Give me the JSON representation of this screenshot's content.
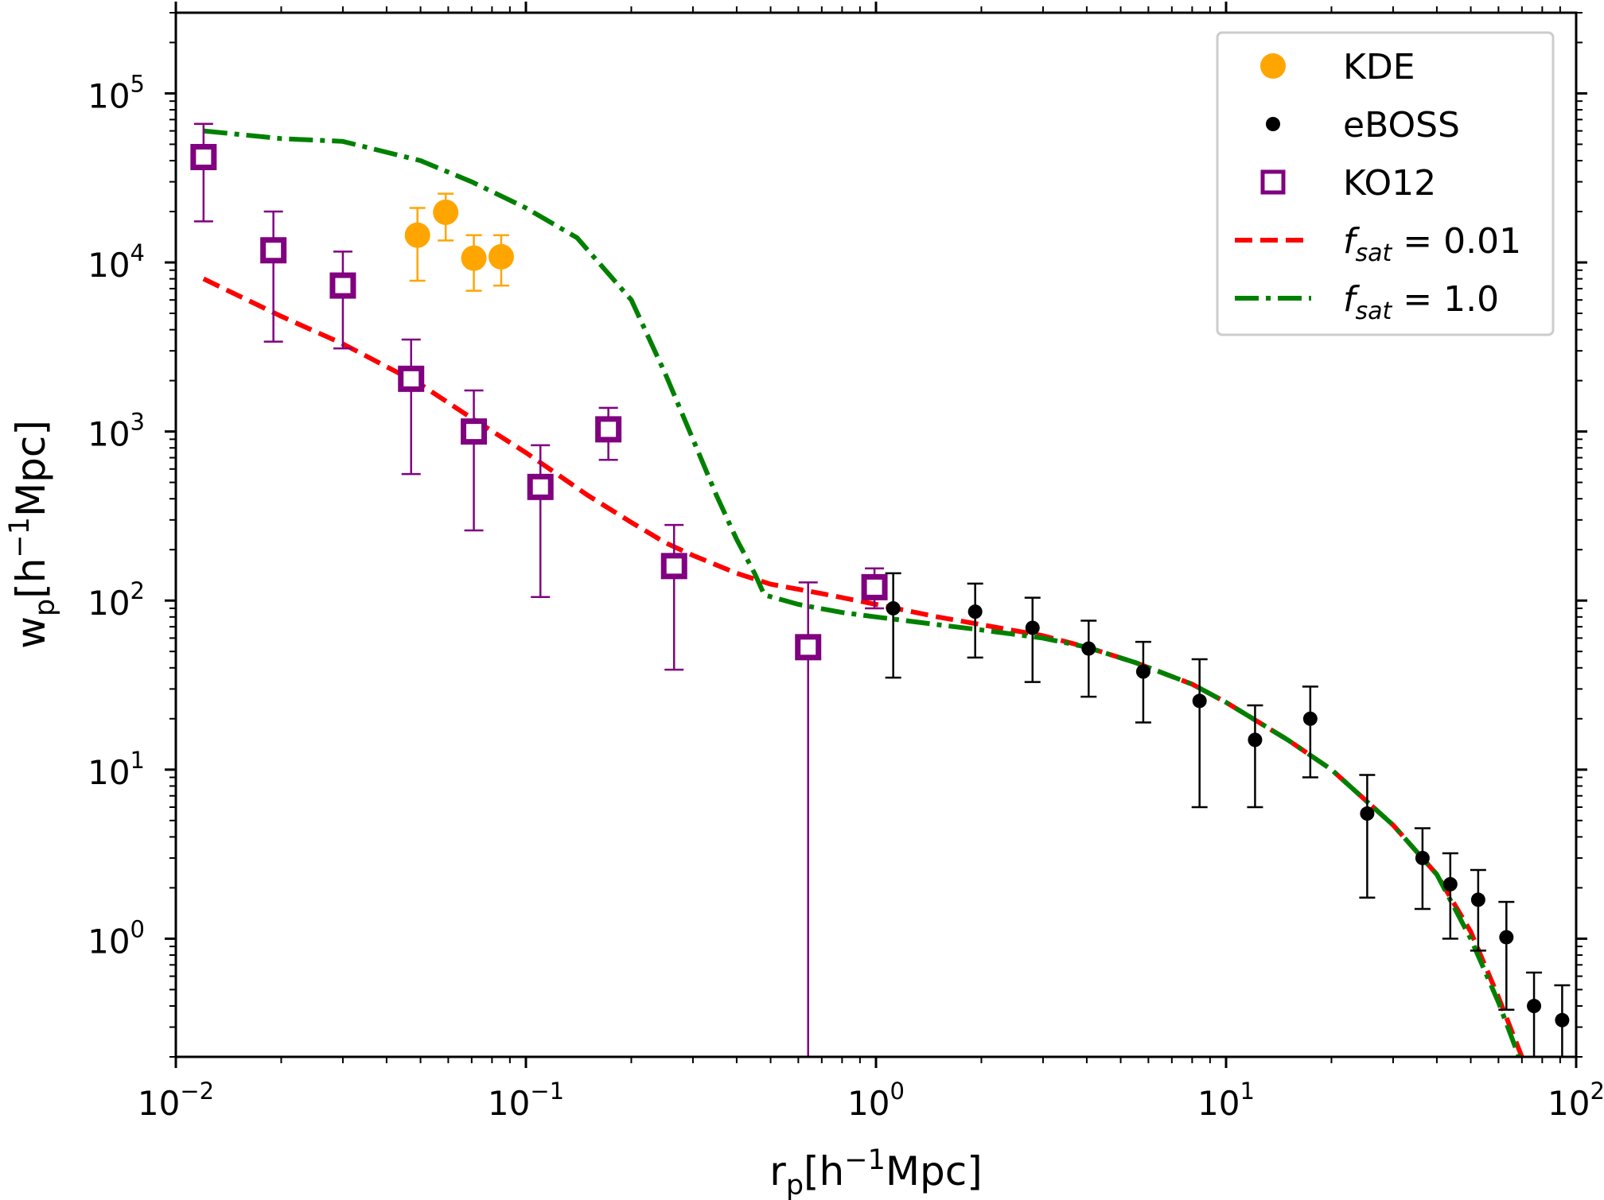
{
  "chart_data": {
    "type": "scatter",
    "xscale": "log",
    "yscale": "log",
    "xlim": [
      0.01,
      100
    ],
    "ylim": [
      0.2,
      300000
    ],
    "xlabel": {
      "main": "r",
      "sub": "p",
      "unit_a": "[h",
      "sup": "−1",
      "unit_b": "Mpc]"
    },
    "ylabel": {
      "main": "w",
      "sub": "p",
      "unit_a": "[h",
      "sup": "−1",
      "unit_b": "Mpc]"
    },
    "x_ticks": [
      {
        "value": 0.01,
        "base": "10",
        "exp": "−2"
      },
      {
        "value": 0.1,
        "base": "10",
        "exp": "−1"
      },
      {
        "value": 1,
        "base": "10",
        "exp": "0"
      },
      {
        "value": 10,
        "base": "10",
        "exp": "1"
      },
      {
        "value": 100,
        "base": "10",
        "exp": "2"
      }
    ],
    "y_ticks": [
      {
        "value": 1,
        "base": "10",
        "exp": "0"
      },
      {
        "value": 10,
        "base": "10",
        "exp": "1"
      },
      {
        "value": 100,
        "base": "10",
        "exp": "2"
      },
      {
        "value": 1000,
        "base": "10",
        "exp": "3"
      },
      {
        "value": 10000,
        "base": "10",
        "exp": "4"
      },
      {
        "value": 100000,
        "base": "10",
        "exp": "5"
      }
    ],
    "grid": false,
    "legend_position": "top-right",
    "legend": [
      {
        "label": "KDE",
        "marker": "circle-large",
        "color": "#ffa500"
      },
      {
        "label": "eBOSS",
        "marker": "circle-small",
        "color": "#000000"
      },
      {
        "label": "KO12",
        "marker": "square-open",
        "color": "#800080"
      },
      {
        "label_main": "f",
        "label_sub": "sat",
        "label_rest": " = 0.01",
        "marker": "dashed",
        "color": "#ff0000"
      },
      {
        "label_main": "f",
        "label_sub": "sat",
        "label_rest": " = 1.0",
        "marker": "dashdot",
        "color": "#008000"
      }
    ],
    "series": [
      {
        "name": "KDE",
        "kind": "points",
        "color": "#ffa500",
        "points": [
          {
            "x": 0.049,
            "y": 14500,
            "lo": 7800,
            "hi": 21000
          },
          {
            "x": 0.059,
            "y": 19800,
            "lo": 13500,
            "hi": 25500
          },
          {
            "x": 0.071,
            "y": 10600,
            "lo": 6800,
            "hi": 14500
          },
          {
            "x": 0.085,
            "y": 10800,
            "lo": 7300,
            "hi": 14500
          }
        ]
      },
      {
        "name": "eBOSS",
        "kind": "points",
        "color": "#000000",
        "points": [
          {
            "x": 1.12,
            "y": 90,
            "lo": 35,
            "hi": 145
          },
          {
            "x": 1.92,
            "y": 86,
            "lo": 46,
            "hi": 126
          },
          {
            "x": 2.8,
            "y": 69,
            "lo": 33,
            "hi": 104
          },
          {
            "x": 4.05,
            "y": 52,
            "lo": 27,
            "hi": 76
          },
          {
            "x": 5.8,
            "y": 38,
            "lo": 19,
            "hi": 57
          },
          {
            "x": 8.4,
            "y": 25.5,
            "lo": 6,
            "hi": 45
          },
          {
            "x": 12.1,
            "y": 15,
            "lo": 6,
            "hi": 24
          },
          {
            "x": 17.4,
            "y": 20,
            "lo": 9,
            "hi": 31
          },
          {
            "x": 25.3,
            "y": 5.5,
            "lo": 1.75,
            "hi": 9.3
          },
          {
            "x": 36.4,
            "y": 3.0,
            "lo": 1.5,
            "hi": 4.5
          },
          {
            "x": 43.7,
            "y": 2.1,
            "lo": 1.0,
            "hi": 3.2
          },
          {
            "x": 52.5,
            "y": 1.7,
            "lo": 0.85,
            "hi": 2.55
          },
          {
            "x": 63.2,
            "y": 1.02,
            "lo": 0.38,
            "hi": 1.65
          },
          {
            "x": 75.8,
            "y": 0.4,
            "lo": 0.15,
            "hi": 0.63
          },
          {
            "x": 91.2,
            "y": 0.33,
            "lo": 0.12,
            "hi": 0.53
          }
        ]
      },
      {
        "name": "KO12",
        "kind": "points",
        "color": "#800080",
        "points": [
          {
            "x": 0.012,
            "y": 42000,
            "lo": 17500,
            "hi": 66000
          },
          {
            "x": 0.019,
            "y": 11800,
            "lo": 3400,
            "hi": 20000
          },
          {
            "x": 0.03,
            "y": 7300,
            "lo": 3100,
            "hi": 11600
          },
          {
            "x": 0.047,
            "y": 2050,
            "lo": 560,
            "hi": 3500
          },
          {
            "x": 0.071,
            "y": 1000,
            "lo": 260,
            "hi": 1750
          },
          {
            "x": 0.11,
            "y": 470,
            "lo": 105,
            "hi": 830
          },
          {
            "x": 0.172,
            "y": 1030,
            "lo": 680,
            "hi": 1380
          },
          {
            "x": 0.265,
            "y": 160,
            "lo": 39,
            "hi": 280
          },
          {
            "x": 0.64,
            "y": 53,
            "lo": 0.2,
            "hi": 128
          },
          {
            "x": 0.99,
            "y": 120,
            "lo": 90,
            "hi": 155
          }
        ]
      },
      {
        "name_main": "f",
        "name_sub": "sat",
        "name_rest": " = 0.01",
        "kind": "line",
        "style": "dashed",
        "color": "#ff0000",
        "x": [
          0.012,
          0.02,
          0.03,
          0.05,
          0.07,
          0.1,
          0.15,
          0.2,
          0.25,
          0.3,
          0.4,
          0.5,
          0.7,
          1.0,
          1.5,
          2.0,
          3.0,
          4.0,
          5.5,
          8.0,
          10.0,
          15.0,
          20.0,
          30.0,
          40.0,
          50.0,
          60.0,
          70.0,
          80.0
        ],
        "y": [
          8000,
          4800,
          3300,
          1900,
          1200,
          750,
          420,
          290,
          220,
          185,
          145,
          125,
          110,
          95,
          80,
          72,
          62,
          53,
          43,
          32,
          25,
          15,
          10,
          4.7,
          2.4,
          1.1,
          0.45,
          0.2,
          0.1
        ]
      },
      {
        "name_main": "f",
        "name_sub": "sat",
        "name_rest": " = 1.0",
        "kind": "line",
        "style": "dashdot",
        "color": "#008000",
        "x": [
          0.012,
          0.02,
          0.03,
          0.05,
          0.07,
          0.1,
          0.14,
          0.2,
          0.25,
          0.3,
          0.35,
          0.4,
          0.45,
          0.48,
          0.6,
          0.8,
          1.0,
          1.5,
          2.0,
          3.0,
          4.0,
          5.5,
          8.0,
          10.0,
          15.0,
          20.0,
          30.0,
          40.0,
          50.0,
          60.0,
          70.0,
          80.0
        ],
        "y": [
          60000,
          54000,
          52000,
          40000,
          30000,
          21000,
          14000,
          6000,
          2200,
          900,
          420,
          230,
          145,
          108,
          95,
          85,
          80,
          72,
          67,
          60,
          53,
          43,
          32,
          25,
          15,
          10,
          4.7,
          2.4,
          1.0,
          0.42,
          0.18,
          0.09
        ]
      }
    ]
  }
}
